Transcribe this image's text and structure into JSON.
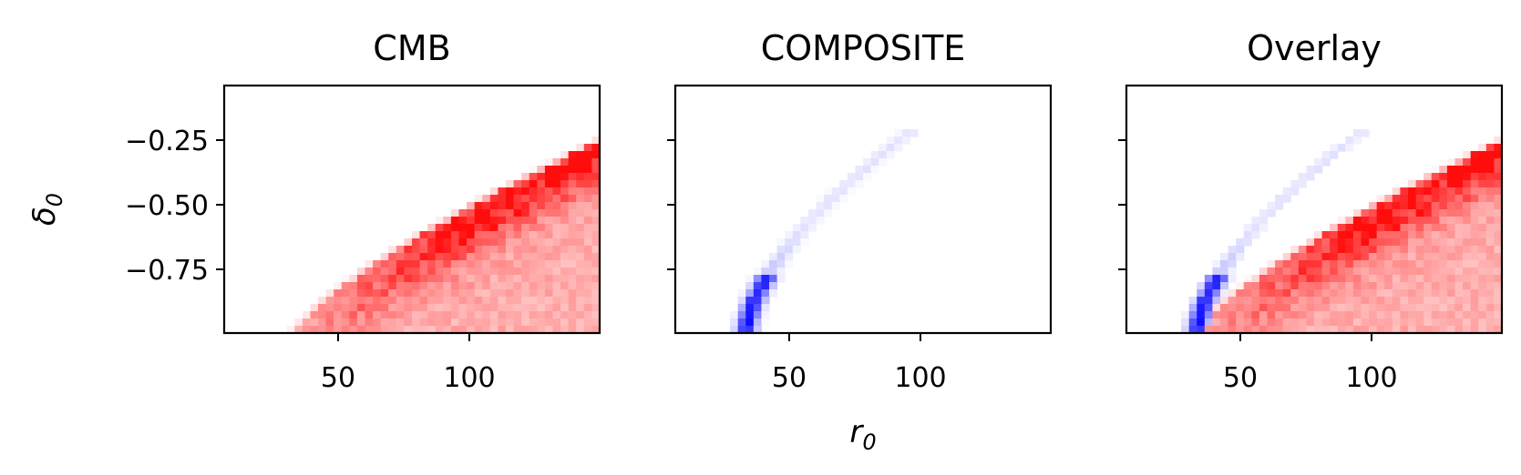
{
  "chart_data": [
    {
      "type": "heatmap",
      "title": "CMB",
      "ylabel": "δ0",
      "xlabel": "",
      "xlim": [
        8,
        152
      ],
      "ylim": [
        -1.0,
        -0.04
      ],
      "xticks": [
        50,
        100
      ],
      "yticks": [
        -0.25,
        -0.5,
        -0.75
      ],
      "xtick_labels": [
        "50",
        "100"
      ],
      "ytick_labels": [
        "−0.25",
        "−0.50",
        "−0.75"
      ],
      "show_xtick_labels": true,
      "show_ytick_labels": true,
      "colormap": "Reds",
      "color": "#ff0000",
      "description": "Red density band: upper edge runs from about r0≈33 at δ0=-1.0 curving up to δ0≈-0.25 at r0≈150; densest near r0≈105, δ0≈-0.45"
    },
    {
      "type": "heatmap",
      "title": "COMPOSITE",
      "xlabel": "r0",
      "ylabel": "",
      "xlim": [
        8,
        152
      ],
      "ylim": [
        -1.0,
        -0.04
      ],
      "xticks": [
        50,
        100
      ],
      "yticks": [
        -0.25,
        -0.5,
        -0.75
      ],
      "xtick_labels": [
        "50",
        "100"
      ],
      "ytick_labels": [
        "",
        "",
        ""
      ],
      "show_xtick_labels": true,
      "show_ytick_labels": false,
      "colormap": "Blues",
      "color": "#0000ff",
      "description": "Thin blue curve from r0≈35 at δ0=-1.0 (darkest) rising to r0≈98 at δ0≈-0.22"
    },
    {
      "type": "heatmap",
      "title": "Overlay",
      "xlabel": "",
      "ylabel": "",
      "xlim": [
        8,
        152
      ],
      "ylim": [
        -1.0,
        -0.04
      ],
      "xticks": [
        50,
        100
      ],
      "yticks": [
        -0.25,
        -0.5,
        -0.75
      ],
      "xtick_labels": [
        "50",
        "100"
      ],
      "ytick_labels": [
        "",
        "",
        ""
      ],
      "show_xtick_labels": true,
      "show_ytick_labels": false,
      "colormap": "Reds+Blues overlay",
      "description": "Overlay of CMB (red) and COMPOSITE (blue) densities"
    }
  ]
}
